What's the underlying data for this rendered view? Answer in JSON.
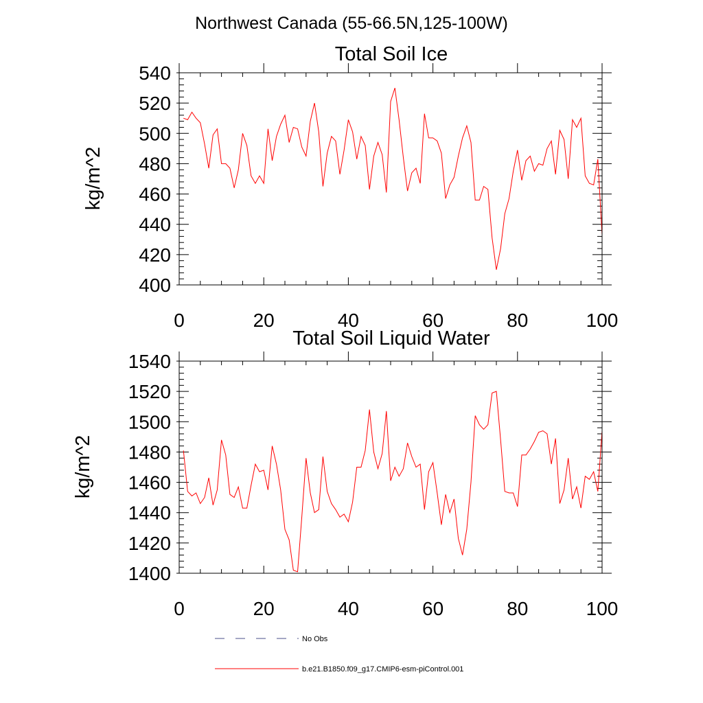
{
  "figure": {
    "suptitle": "Northwest Canada (55-66.5N,125-100W)",
    "legend": [
      {
        "label": "No Obs",
        "style": "dashed",
        "color": "#4a4f88"
      },
      {
        "label": "b.e21.B1850.f09_g17.CMIP6-esm-piControl.001",
        "style": "solid",
        "color": "#ff0000"
      }
    ]
  },
  "chart_data": [
    {
      "type": "line",
      "title": "Total Soil Ice",
      "xlabel": "",
      "ylabel": "kg/m^2",
      "xlim": [
        0,
        100
      ],
      "ylim": [
        400,
        540
      ],
      "xticks": [
        0,
        20,
        40,
        60,
        80,
        100
      ],
      "yticks": [
        400,
        420,
        440,
        460,
        480,
        500,
        520,
        540
      ],
      "grid": false,
      "series": [
        {
          "name": "b.e21.B1850.f09_g17.CMIP6-esm-piControl.001",
          "color": "#ff0000",
          "x": [
            1,
            2,
            3,
            4,
            5,
            6,
            7,
            8,
            9,
            10,
            11,
            12,
            13,
            14,
            15,
            16,
            17,
            18,
            19,
            20,
            21,
            22,
            23,
            24,
            25,
            26,
            27,
            28,
            29,
            30,
            31,
            32,
            33,
            34,
            35,
            36,
            37,
            38,
            39,
            40,
            41,
            42,
            43,
            44,
            45,
            46,
            47,
            48,
            49,
            50,
            51,
            52,
            53,
            54,
            55,
            56,
            57,
            58,
            59,
            60,
            61,
            62,
            63,
            64,
            65,
            66,
            67,
            68,
            69,
            70,
            71,
            72,
            73,
            74,
            75,
            76,
            77,
            78,
            79,
            80,
            81,
            82,
            83,
            84,
            85,
            86,
            87,
            88,
            89,
            90,
            91,
            92,
            93,
            94,
            95,
            96,
            97,
            98,
            99,
            100
          ],
          "values": [
            510,
            509,
            514,
            510,
            507,
            493,
            477,
            499,
            503,
            480,
            480,
            477,
            464,
            476,
            500,
            492,
            472,
            467,
            472,
            467,
            503,
            482,
            498,
            506,
            512,
            494,
            504,
            503,
            491,
            485,
            508,
            520,
            501,
            465,
            487,
            498,
            495,
            473,
            489,
            509,
            501,
            483,
            498,
            492,
            463,
            485,
            494,
            486,
            461,
            521,
            530,
            509,
            484,
            462,
            474,
            477,
            467,
            513,
            497,
            497,
            495,
            487,
            457,
            466,
            471,
            485,
            497,
            505,
            494,
            456,
            456,
            465,
            463,
            431,
            410,
            424,
            447,
            457,
            475,
            489,
            469,
            482,
            485,
            475,
            480,
            479,
            490,
            495,
            473,
            502,
            496,
            470,
            509,
            504,
            510,
            472,
            467,
            466,
            483,
            433
          ]
        }
      ]
    },
    {
      "type": "line",
      "title": "Total Soil Liquid Water",
      "xlabel": "",
      "ylabel": "kg/m^2",
      "xlim": [
        0,
        100
      ],
      "ylim": [
        1400,
        1540
      ],
      "xticks": [
        0,
        20,
        40,
        60,
        80,
        100
      ],
      "yticks": [
        1400,
        1420,
        1440,
        1460,
        1480,
        1500,
        1520,
        1540
      ],
      "grid": false,
      "series": [
        {
          "name": "b.e21.B1850.f09_g17.CMIP6-esm-piControl.001",
          "color": "#ff0000",
          "x": [
            1,
            2,
            3,
            4,
            5,
            6,
            7,
            8,
            9,
            10,
            11,
            12,
            13,
            14,
            15,
            16,
            17,
            18,
            19,
            20,
            21,
            22,
            23,
            24,
            25,
            26,
            27,
            28,
            29,
            30,
            31,
            32,
            33,
            34,
            35,
            36,
            37,
            38,
            39,
            40,
            41,
            42,
            43,
            44,
            45,
            46,
            47,
            48,
            49,
            50,
            51,
            52,
            53,
            54,
            55,
            56,
            57,
            58,
            59,
            60,
            61,
            62,
            63,
            64,
            65,
            66,
            67,
            68,
            69,
            70,
            71,
            72,
            73,
            74,
            75,
            76,
            77,
            78,
            79,
            80,
            81,
            82,
            83,
            84,
            85,
            86,
            87,
            88,
            89,
            90,
            91,
            92,
            93,
            94,
            95,
            96,
            97,
            98,
            99,
            100
          ],
          "values": [
            1481,
            1454,
            1451,
            1453,
            1446,
            1450,
            1463,
            1445,
            1455,
            1488,
            1478,
            1452,
            1450,
            1457,
            1443,
            1443,
            1458,
            1472,
            1467,
            1468,
            1455,
            1484,
            1472,
            1455,
            1429,
            1422,
            1402,
            1401,
            1437,
            1476,
            1453,
            1440,
            1442,
            1477,
            1454,
            1446,
            1442,
            1437,
            1439,
            1434,
            1447,
            1470,
            1470,
            1481,
            1508,
            1480,
            1469,
            1479,
            1507,
            1461,
            1470,
            1464,
            1469,
            1486,
            1477,
            1470,
            1472,
            1442,
            1467,
            1473,
            1453,
            1432,
            1452,
            1440,
            1449,
            1423,
            1412,
            1429,
            1460,
            1504,
            1498,
            1495,
            1498,
            1519,
            1520,
            1488,
            1454,
            1453,
            1453,
            1444,
            1478,
            1478,
            1482,
            1487,
            1493,
            1494,
            1492,
            1472,
            1489,
            1446,
            1455,
            1476,
            1449,
            1457,
            1443,
            1464,
            1462,
            1467,
            1454,
            1494
          ]
        }
      ]
    }
  ]
}
